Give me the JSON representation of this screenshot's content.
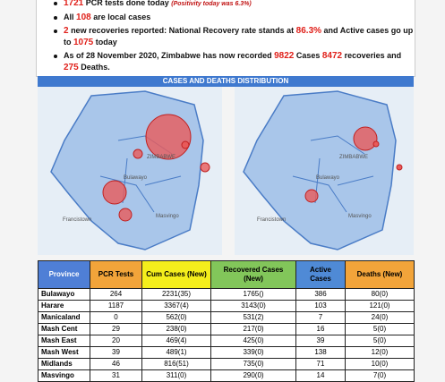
{
  "bullets": [
    {
      "segments": [
        {
          "text": "1721",
          "style": "red"
        },
        {
          "text": " PCR tests done today ",
          "style": "plain"
        },
        {
          "text": "(Positivity today was 6.3%)",
          "style": "italic"
        }
      ]
    },
    {
      "segments": [
        {
          "text": "All ",
          "style": "plain"
        },
        {
          "text": "108",
          "style": "red"
        },
        {
          "text": " are local cases",
          "style": "plain"
        }
      ]
    },
    {
      "segments": [
        {
          "text": "2",
          "style": "red"
        },
        {
          "text": " new recoveries reported: National Recovery rate stands at ",
          "style": "plain"
        },
        {
          "text": "86.3%",
          "style": "red"
        },
        {
          "text": " and Active cases go up to ",
          "style": "plain"
        },
        {
          "text": "1075",
          "style": "red"
        },
        {
          "text": " today",
          "style": "plain"
        }
      ]
    },
    {
      "segments": [
        {
          "text": "As of 28 November 2020, Zimbabwe has now recorded ",
          "style": "plain"
        },
        {
          "text": "9822",
          "style": "red"
        },
        {
          "text": " Cases ",
          "style": "plain"
        },
        {
          "text": "8472",
          "style": "red"
        },
        {
          "text": " recoveries and ",
          "style": "plain"
        },
        {
          "text": "275",
          "style": "red"
        },
        {
          "text": " Deaths.",
          "style": "plain"
        }
      ]
    }
  ],
  "map_section": {
    "title": "CASES AND DEATHS DISTRIBUTION",
    "labels": [
      "ZIMBABWE",
      "Bulawayo",
      "Francistown",
      "Masvingo"
    ]
  },
  "table": {
    "columns": [
      "Province",
      "PCR Tests",
      "Cum Cases (New)",
      "Recovered Cases (New)",
      "Active Cases",
      "Deaths (New)"
    ],
    "header_colors": [
      "#4f7fd6",
      "#f2a43a",
      "#f4ee1c",
      "#82c65a",
      "#4f8ad6",
      "#f2a43a"
    ],
    "rows": [
      [
        "Bulawayo",
        "264",
        "2231(35)",
        "1765()",
        "386",
        "80(0)"
      ],
      [
        "Harare",
        "1187",
        "3367(4)",
        "3143(0)",
        "103",
        "121(0)"
      ],
      [
        "Manicaland",
        "0",
        "562(0)",
        "531(2)",
        "7",
        "24(0)"
      ],
      [
        "Mash Cent",
        "29",
        "238(0)",
        "217(0)",
        "16",
        "5(0)"
      ],
      [
        "Mash East",
        "20",
        "469(4)",
        "425(0)",
        "39",
        "5(0)"
      ],
      [
        "Mash West",
        "39",
        "489(1)",
        "339(0)",
        "138",
        "12(0)"
      ],
      [
        "Midlands",
        "46",
        "816(51)",
        "735(0)",
        "71",
        "10(0)"
      ],
      [
        "Masvingo",
        "31",
        "311(0)",
        "290(0)",
        "14",
        "7(0)"
      ]
    ]
  }
}
